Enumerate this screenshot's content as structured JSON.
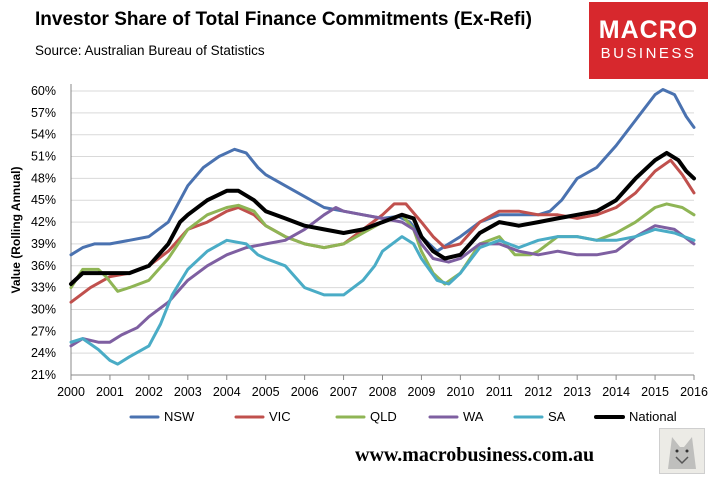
{
  "title": "Investor Share of Total Finance Commitments (Ex-Refi)",
  "source": "Source: Australian Bureau of Statistics",
  "logo": {
    "line1": "MACRO",
    "line2": "BUSINESS",
    "color": "#d7282d"
  },
  "footer": "www.macrobusiness.com.au",
  "chart_data": {
    "type": "line",
    "title": "Investor Share of Total Finance Commitments (Ex-Refi)",
    "xlabel": "",
    "ylabel": "Value (Rolling Annual)",
    "xlim": [
      2000,
      2016
    ],
    "ylim": [
      21,
      61
    ],
    "grid": "horizontal",
    "legend": "bottom",
    "x_ticks": [
      "2000",
      "2001",
      "2002",
      "2003",
      "2004",
      "2005",
      "2006",
      "2007",
      "2008",
      "2009",
      "2010",
      "2011",
      "2012",
      "2013",
      "2014",
      "2015",
      "2016"
    ],
    "y_ticks": [
      "21%",
      "24%",
      "27%",
      "30%",
      "33%",
      "36%",
      "39%",
      "42%",
      "45%",
      "48%",
      "51%",
      "54%",
      "57%",
      "60%"
    ],
    "series": [
      {
        "name": "NSW",
        "color": "#4a72b0",
        "width": 3,
        "points": [
          [
            2000,
            37.5
          ],
          [
            2000.3,
            38.5
          ],
          [
            2000.6,
            39
          ],
          [
            2001,
            39
          ],
          [
            2001.5,
            39.5
          ],
          [
            2002,
            40
          ],
          [
            2002.5,
            42
          ],
          [
            2002.8,
            45
          ],
          [
            2003,
            47
          ],
          [
            2003.4,
            49.5
          ],
          [
            2003.8,
            51
          ],
          [
            2004.2,
            52
          ],
          [
            2004.5,
            51.5
          ],
          [
            2004.8,
            49.5
          ],
          [
            2005,
            48.5
          ],
          [
            2005.5,
            47
          ],
          [
            2006,
            45.5
          ],
          [
            2006.5,
            44
          ],
          [
            2007,
            43.5
          ],
          [
            2007.5,
            43
          ],
          [
            2008,
            42.5
          ],
          [
            2008.4,
            42.8
          ],
          [
            2008.7,
            42
          ],
          [
            2009,
            40
          ],
          [
            2009.4,
            38
          ],
          [
            2009.7,
            39
          ],
          [
            2010,
            40
          ],
          [
            2010.5,
            42
          ],
          [
            2011,
            43
          ],
          [
            2011.5,
            43
          ],
          [
            2012,
            43
          ],
          [
            2012.3,
            43.5
          ],
          [
            2012.6,
            45
          ],
          [
            2013,
            48
          ],
          [
            2013.5,
            49.5
          ],
          [
            2014,
            52.5
          ],
          [
            2014.5,
            56
          ],
          [
            2015,
            59.5
          ],
          [
            2015.2,
            60.2
          ],
          [
            2015.5,
            59.5
          ],
          [
            2015.8,
            56.5
          ],
          [
            2016,
            55
          ]
        ]
      },
      {
        "name": "VIC",
        "color": "#c0504d",
        "width": 3,
        "points": [
          [
            2000,
            31
          ],
          [
            2000.5,
            33
          ],
          [
            2001,
            34.5
          ],
          [
            2001.5,
            35
          ],
          [
            2002,
            36
          ],
          [
            2002.5,
            38
          ],
          [
            2003,
            41
          ],
          [
            2003.5,
            42
          ],
          [
            2004,
            43.5
          ],
          [
            2004.3,
            44
          ],
          [
            2004.7,
            43
          ],
          [
            2005,
            41.5
          ],
          [
            2005.5,
            40
          ],
          [
            2006,
            39
          ],
          [
            2006.5,
            38.5
          ],
          [
            2007,
            39
          ],
          [
            2007.5,
            41
          ],
          [
            2008,
            43
          ],
          [
            2008.3,
            44.5
          ],
          [
            2008.6,
            44.5
          ],
          [
            2009,
            42
          ],
          [
            2009.3,
            40
          ],
          [
            2009.6,
            38.5
          ],
          [
            2010,
            39
          ],
          [
            2010.5,
            42
          ],
          [
            2011,
            43.5
          ],
          [
            2011.5,
            43.5
          ],
          [
            2012,
            43
          ],
          [
            2012.5,
            43
          ],
          [
            2013,
            42.5
          ],
          [
            2013.5,
            43
          ],
          [
            2014,
            44
          ],
          [
            2014.5,
            46
          ],
          [
            2015,
            49
          ],
          [
            2015.4,
            50.5
          ],
          [
            2015.7,
            48.5
          ],
          [
            2016,
            46
          ]
        ]
      },
      {
        "name": "QLD",
        "color": "#8fb555",
        "width": 3,
        "points": [
          [
            2000,
            33
          ],
          [
            2000.3,
            35.5
          ],
          [
            2000.7,
            35.5
          ],
          [
            2000.9,
            34.5
          ],
          [
            2001.2,
            32.5
          ],
          [
            2001.5,
            33
          ],
          [
            2002,
            34
          ],
          [
            2002.5,
            37
          ],
          [
            2003,
            41
          ],
          [
            2003.5,
            43
          ],
          [
            2004,
            44
          ],
          [
            2004.3,
            44.3
          ],
          [
            2004.7,
            43.5
          ],
          [
            2005,
            41.5
          ],
          [
            2005.5,
            40
          ],
          [
            2006,
            39
          ],
          [
            2006.5,
            38.5
          ],
          [
            2007,
            39
          ],
          [
            2007.5,
            40.5
          ],
          [
            2008,
            42
          ],
          [
            2008.5,
            43
          ],
          [
            2008.8,
            41
          ],
          [
            2009,
            38
          ],
          [
            2009.3,
            35
          ],
          [
            2009.6,
            33.5
          ],
          [
            2010,
            35
          ],
          [
            2010.5,
            39
          ],
          [
            2011,
            40
          ],
          [
            2011.4,
            37.5
          ],
          [
            2011.8,
            37.5
          ],
          [
            2012,
            38
          ],
          [
            2012.5,
            40
          ],
          [
            2013,
            40
          ],
          [
            2013.5,
            39.5
          ],
          [
            2014,
            40.5
          ],
          [
            2014.5,
            42
          ],
          [
            2015,
            44
          ],
          [
            2015.3,
            44.5
          ],
          [
            2015.7,
            44
          ],
          [
            2016,
            43
          ]
        ]
      },
      {
        "name": "WA",
        "color": "#7e5fa1",
        "width": 3,
        "points": [
          [
            2000,
            25
          ],
          [
            2000.3,
            26
          ],
          [
            2000.7,
            25.5
          ],
          [
            2001,
            25.5
          ],
          [
            2001.3,
            26.5
          ],
          [
            2001.7,
            27.5
          ],
          [
            2002,
            29
          ],
          [
            2002.5,
            31
          ],
          [
            2003,
            34
          ],
          [
            2003.5,
            36
          ],
          [
            2004,
            37.5
          ],
          [
            2004.5,
            38.5
          ],
          [
            2005,
            39
          ],
          [
            2005.5,
            39.5
          ],
          [
            2006,
            41
          ],
          [
            2006.5,
            43
          ],
          [
            2006.8,
            44
          ],
          [
            2007,
            43.5
          ],
          [
            2007.5,
            43
          ],
          [
            2008,
            42.5
          ],
          [
            2008.5,
            42
          ],
          [
            2008.8,
            41
          ],
          [
            2009,
            39
          ],
          [
            2009.3,
            37
          ],
          [
            2009.7,
            36.5
          ],
          [
            2010,
            37
          ],
          [
            2010.5,
            39
          ],
          [
            2011,
            39
          ],
          [
            2011.5,
            38
          ],
          [
            2012,
            37.5
          ],
          [
            2012.5,
            38
          ],
          [
            2013,
            37.5
          ],
          [
            2013.5,
            37.5
          ],
          [
            2014,
            38
          ],
          [
            2014.5,
            40
          ],
          [
            2015,
            41.5
          ],
          [
            2015.5,
            41
          ],
          [
            2016,
            39
          ]
        ]
      },
      {
        "name": "SA",
        "color": "#4aacc6",
        "width": 3,
        "points": [
          [
            2000,
            25.5
          ],
          [
            2000.3,
            26
          ],
          [
            2000.7,
            24.5
          ],
          [
            2001,
            23
          ],
          [
            2001.2,
            22.5
          ],
          [
            2001.5,
            23.5
          ],
          [
            2002,
            25
          ],
          [
            2002.3,
            28
          ],
          [
            2002.6,
            32
          ],
          [
            2003,
            35.5
          ],
          [
            2003.5,
            38
          ],
          [
            2004,
            39.5
          ],
          [
            2004.5,
            39
          ],
          [
            2004.8,
            37.5
          ],
          [
            2005,
            37
          ],
          [
            2005.5,
            36
          ],
          [
            2006,
            33
          ],
          [
            2006.5,
            32
          ],
          [
            2007,
            32
          ],
          [
            2007.5,
            34
          ],
          [
            2007.8,
            36
          ],
          [
            2008,
            38
          ],
          [
            2008.5,
            40
          ],
          [
            2008.8,
            39
          ],
          [
            2009,
            37
          ],
          [
            2009.4,
            34
          ],
          [
            2009.7,
            33.5
          ],
          [
            2010,
            35
          ],
          [
            2010.5,
            38.5
          ],
          [
            2011,
            39.5
          ],
          [
            2011.5,
            38.5
          ],
          [
            2012,
            39.5
          ],
          [
            2012.5,
            40
          ],
          [
            2013,
            40
          ],
          [
            2013.5,
            39.5
          ],
          [
            2014,
            39.5
          ],
          [
            2014.5,
            40
          ],
          [
            2015,
            41
          ],
          [
            2015.5,
            40.5
          ],
          [
            2016,
            39.5
          ]
        ]
      },
      {
        "name": "National",
        "color": "#000000",
        "width": 4,
        "points": [
          [
            2000,
            33.5
          ],
          [
            2000.3,
            35
          ],
          [
            2000.6,
            35
          ],
          [
            2001,
            35
          ],
          [
            2001.5,
            35
          ],
          [
            2002,
            36
          ],
          [
            2002.5,
            39
          ],
          [
            2002.8,
            42
          ],
          [
            2003,
            43
          ],
          [
            2003.5,
            45
          ],
          [
            2004,
            46.3
          ],
          [
            2004.3,
            46.3
          ],
          [
            2004.7,
            45
          ],
          [
            2005,
            43.5
          ],
          [
            2005.5,
            42.5
          ],
          [
            2006,
            41.5
          ],
          [
            2006.5,
            41
          ],
          [
            2007,
            40.5
          ],
          [
            2007.5,
            41
          ],
          [
            2008,
            42
          ],
          [
            2008.5,
            43
          ],
          [
            2008.8,
            42.5
          ],
          [
            2009,
            40
          ],
          [
            2009.3,
            38
          ],
          [
            2009.6,
            37
          ],
          [
            2010,
            37.5
          ],
          [
            2010.5,
            40.5
          ],
          [
            2011,
            42
          ],
          [
            2011.5,
            41.5
          ],
          [
            2012,
            42
          ],
          [
            2012.5,
            42.5
          ],
          [
            2013,
            43
          ],
          [
            2013.5,
            43.5
          ],
          [
            2014,
            45
          ],
          [
            2014.5,
            48
          ],
          [
            2015,
            50.5
          ],
          [
            2015.3,
            51.5
          ],
          [
            2015.6,
            50.5
          ],
          [
            2015.8,
            49
          ],
          [
            2016,
            48
          ]
        ]
      }
    ]
  }
}
